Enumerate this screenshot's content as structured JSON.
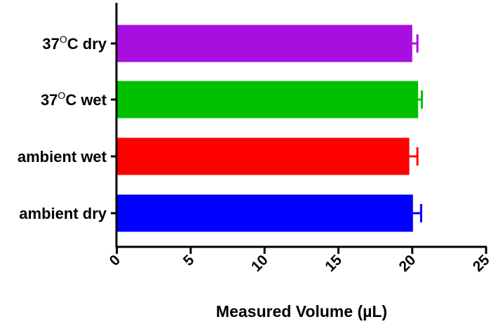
{
  "chart_data": {
    "type": "bar",
    "orientation": "horizontal",
    "categories": [
      "37°C dry",
      "37°C wet",
      "ambient wet",
      "ambient dry"
    ],
    "category_labels": [
      {
        "prefix": "37",
        "sup": "O",
        "suffix": "C dry"
      },
      {
        "prefix": "37",
        "sup": "O",
        "suffix": "C wet"
      },
      {
        "prefix": "ambient wet",
        "sup": "",
        "suffix": ""
      },
      {
        "prefix": "ambient dry",
        "sup": "",
        "suffix": ""
      }
    ],
    "values": [
      20.0,
      20.4,
      19.8,
      20.05
    ],
    "errors": [
      0.35,
      0.25,
      0.55,
      0.55
    ],
    "colors": [
      "#a80ee0",
      "#00c000",
      "#ff0000",
      "#0000ff"
    ],
    "xlabel": "Measured Volume (µL)",
    "ylabel": "",
    "xlim": [
      0,
      25
    ],
    "xticks": [
      "0",
      "5",
      "10",
      "15",
      "20",
      "25"
    ],
    "grid": false
  }
}
